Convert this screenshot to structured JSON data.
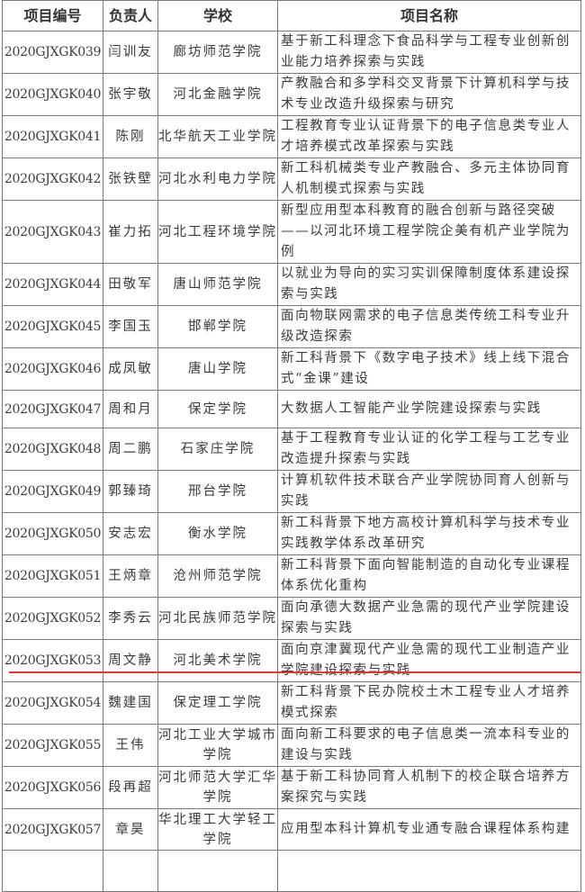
{
  "headers": {
    "code": "项目编号",
    "person": "负责人",
    "school": "学校",
    "title": "项目名称"
  },
  "rows": [
    {
      "code": "2020GJXGK039",
      "person": "闫训友",
      "school": "廊坊师范学院",
      "title": "基于新工科理念下食品科学与工程专业创新创业能力培养探索与实践"
    },
    {
      "code": "2020GJXGK040",
      "person": "张宇敬",
      "school": "河北金融学院",
      "title": "产教融合和多学科交叉背景下计算机科学与技术专业改造升级探索与研究"
    },
    {
      "code": "2020GJXGK041",
      "person": "陈刚",
      "school": "北华航天工业学院",
      "title": "工程教育专业认证背景下的电子信息类专业人才培养模式改革探索与实践"
    },
    {
      "code": "2020GJXGK042",
      "person": "张铁壁",
      "school": "河北水利电力学院",
      "title": "新工科机械类专业产教融合、多元主体协同育人机制模式探索与实践"
    },
    {
      "code": "2020GJXGK043",
      "person": "崔力拓",
      "school": "河北工程环境学院",
      "title": "新型应用型本科教育的融合创新与路径突破——以河北环境工程学院企美有机产业学院为例"
    },
    {
      "code": "2020GJXGK044",
      "person": "田敬军",
      "school": "唐山师范学院",
      "title": "以就业为导向的实习实训保障制度体系建设探索与实践"
    },
    {
      "code": "2020GJXGK045",
      "person": "李国玉",
      "school": "邯郸学院",
      "title": "面向物联网需求的电子信息类传统工科专业升级改造探索"
    },
    {
      "code": "2020GJXGK046",
      "person": "成凤敏",
      "school": "唐山学院",
      "title": "新工科背景下《数字电子技术》线上线下混合式“金课”建设"
    },
    {
      "code": "2020GJXGK047",
      "person": "周和月",
      "school": "保定学院",
      "title": "大数据人工智能产业学院建设探索与实践"
    },
    {
      "code": "2020GJXGK048",
      "person": "周二鹏",
      "school": "石家庄学院",
      "title": "基于工程教育专业认证的化学工程与工艺专业改造提升探索与实践"
    },
    {
      "code": "2020GJXGK049",
      "person": "郭臻琦",
      "school": "邢台学院",
      "title": "计算机软件技术联合产业学院协同育人创新与实践"
    },
    {
      "code": "2020GJXGK050",
      "person": "安志宏",
      "school": "衡水学院",
      "title": "新工科背景下地方高校计算机科学与技术专业实践教学体系改革研究"
    },
    {
      "code": "2020GJXGK051",
      "person": "王炳章",
      "school": "沧州师范学院",
      "title": "新工科背景下面向智能制造的自动化专业课程体系优化重构"
    },
    {
      "code": "2020GJXGK052",
      "person": "李秀云",
      "school": "河北民族师范学院",
      "title": "面向承德大数据产业急需的现代产业学院建设探索与实践"
    },
    {
      "code": "2020GJXGK053",
      "person": "周文静",
      "school": "河北美术学院",
      "title": "面向京津冀现代产业急需的现代工业制造产业学院建设探索与实践"
    },
    {
      "code": "2020GJXGK054",
      "person": "魏建国",
      "school": "保定理工学院",
      "title": "新工科背景下民办院校土木工程专业人才培养模式探索"
    },
    {
      "code": "2020GJXGK055",
      "person": "王伟",
      "school": "河北工业大学城市学院",
      "title": "面向新工科要求的电子信息类一流本科专业的建设与实践"
    },
    {
      "code": "2020GJXGK056",
      "person": "段再超",
      "school": "河北师范大学汇华学院",
      "title": "基于新工科协同育人机制下的校企联合培养方案探究与实践"
    },
    {
      "code": "2020GJXGK057",
      "person": "章昊",
      "school": "华北理工大学轻工学院",
      "title": "应用型本科计算机专业通专融合课程体系构建"
    }
  ],
  "colors": {
    "border": "#7a7a7a",
    "underline": "#e0363a",
    "text": "#3a3a3a"
  }
}
